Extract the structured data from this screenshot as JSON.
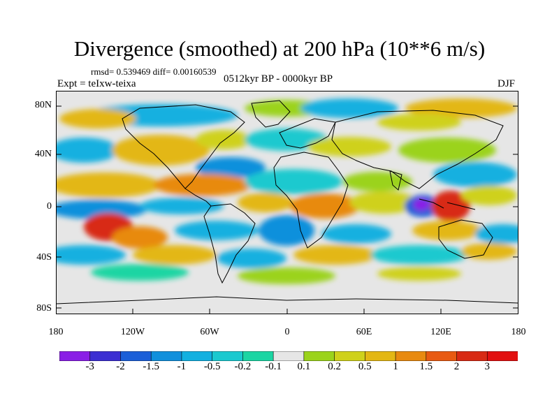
{
  "title": "Divergence (smoothed) at 200 hPa (10**6 m/s)",
  "stats": "rmsd= 0.539469 diff= 0.00160539",
  "experiment": "Expt = teIxw-teixa",
  "period": "0512kyr BP - 0000kyr BP",
  "season": "DJF",
  "lat_ticks": [
    "80N",
    "40N",
    "0",
    "40S",
    "80S"
  ],
  "lon_ticks": [
    "180",
    "120W",
    "60W",
    "0",
    "60E",
    "120E",
    "180"
  ],
  "colorbar": {
    "labels": [
      "-3",
      "-2",
      "-1.5",
      "-1",
      "-0.5",
      "-0.2",
      "-0.1",
      "0.1",
      "0.2",
      "0.5",
      "1",
      "1.5",
      "2",
      "3"
    ],
    "colors": [
      "#8a1ee6",
      "#3c2fd2",
      "#1c5fd8",
      "#1190dc",
      "#12b0e0",
      "#1bc9cf",
      "#1cd5a3",
      "#e6e6e6",
      "#9bd31c",
      "#cfd11b",
      "#e3b714",
      "#e88a10",
      "#e85a12",
      "#d82a14",
      "#e21010"
    ]
  }
}
